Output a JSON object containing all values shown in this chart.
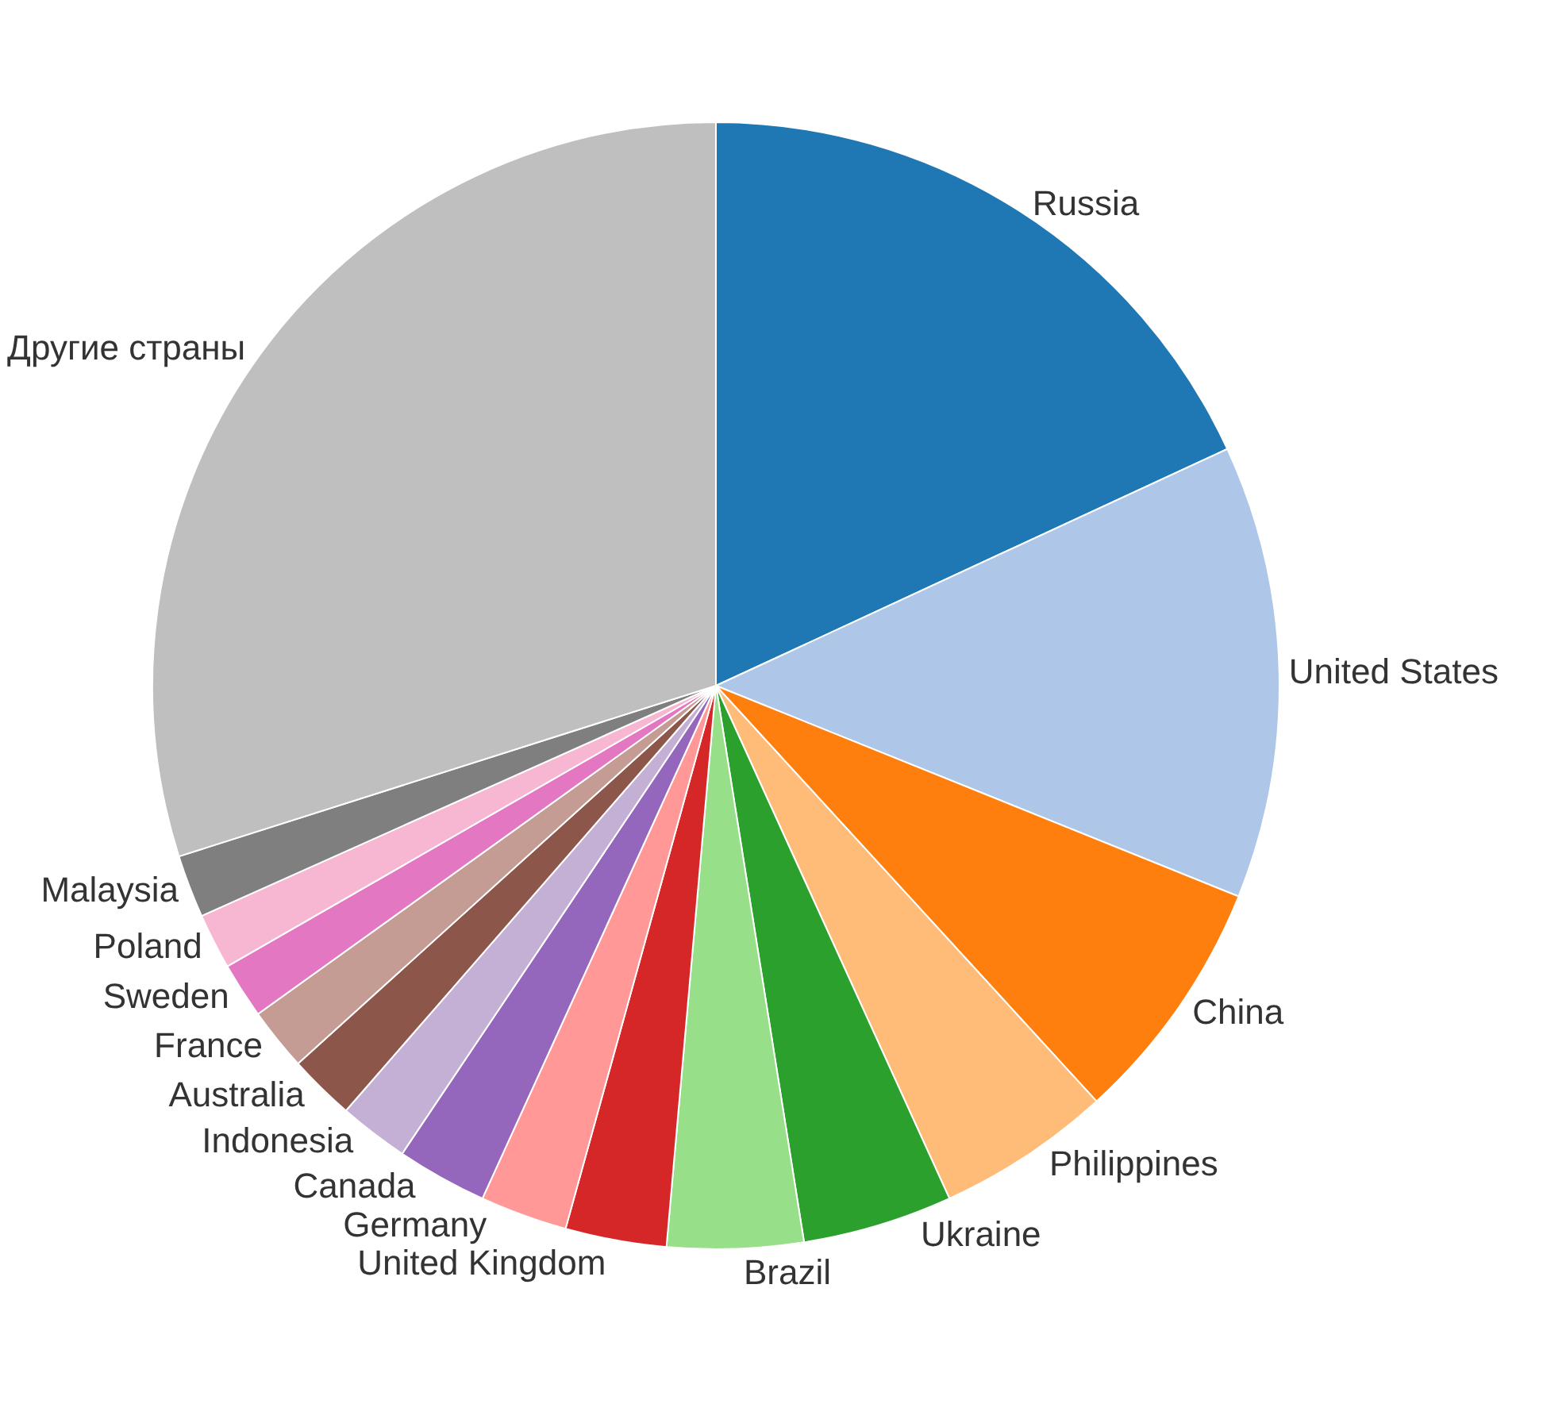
{
  "chart_data": {
    "type": "pie",
    "categories": [
      "Russia",
      "United States",
      "China",
      "Philippines",
      "Ukraine",
      "Brazil",
      "United Kingdom",
      "Germany",
      "Canada",
      "Indonesia",
      "Australia",
      "France",
      "Sweden",
      "Poland",
      "Malaysia",
      "Другие страны"
    ],
    "values": [
      18.1,
      13.0,
      7.1,
      5.0,
      4.3,
      3.9,
      2.9,
      2.5,
      2.6,
      2.0,
      1.9,
      1.8,
      1.6,
      1.6,
      1.8,
      29.9
    ],
    "colors": [
      "#1f77b4",
      "#aec7e8",
      "#ff7f0e",
      "#ffbb78",
      "#2ca02c",
      "#98df8a",
      "#d62728",
      "#ff9896",
      "#9467bd",
      "#c5b0d5",
      "#8c564b",
      "#c49c94",
      "#e377c2",
      "#f7b6d2",
      "#7f7f7f",
      "#c0bfbf"
    ],
    "legend": false
  }
}
